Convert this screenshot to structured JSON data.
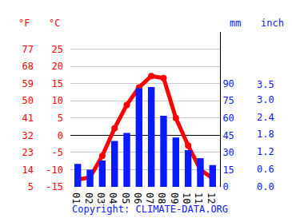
{
  "chart_data": {
    "type": "combo",
    "categories": [
      "01",
      "02",
      "03",
      "04",
      "05",
      "06",
      "07",
      "08",
      "09",
      "10",
      "11",
      "12"
    ],
    "series": [
      {
        "type": "bar",
        "axis": "y2",
        "color": "#0a1aff",
        "values": [
          20,
          15,
          23,
          40,
          47,
          86,
          87,
          62,
          43,
          32,
          25,
          19
        ]
      },
      {
        "type": "line",
        "axis": "y",
        "color": "#ff0000",
        "marker": "circle",
        "values": [
          -12.9,
          -12.2,
          -6,
          2,
          8.8,
          13.9,
          17.2,
          16.6,
          5,
          -3,
          -10,
          -12.5
        ]
      }
    ],
    "ylabel": "°C",
    "ylim": [
      -15,
      30
    ],
    "yticks": [
      -15,
      -10,
      -5,
      0,
      5,
      10,
      15,
      20,
      25
    ],
    "y2label": "mm",
    "y2lim": [
      0,
      135
    ],
    "y2ticks": [
      0,
      15,
      30,
      45,
      60,
      75,
      90
    ],
    "y3label": "°F",
    "y3lim": [
      5,
      86
    ],
    "y3ticks": [
      5,
      14,
      23,
      32,
      41,
      50,
      59,
      68,
      77
    ],
    "y4label": "inch",
    "y4lim": [
      0,
      5.31
    ],
    "y4ticks": [
      {
        "value": 0,
        "label": "0.0"
      },
      0.6,
      1.2,
      1.8,
      2.4,
      {
        "value": 3,
        "label": "3.0"
      },
      3.5
    ],
    "note": "Copyright: CLIMATE-DATA.ORG",
    "grid": true
  }
}
